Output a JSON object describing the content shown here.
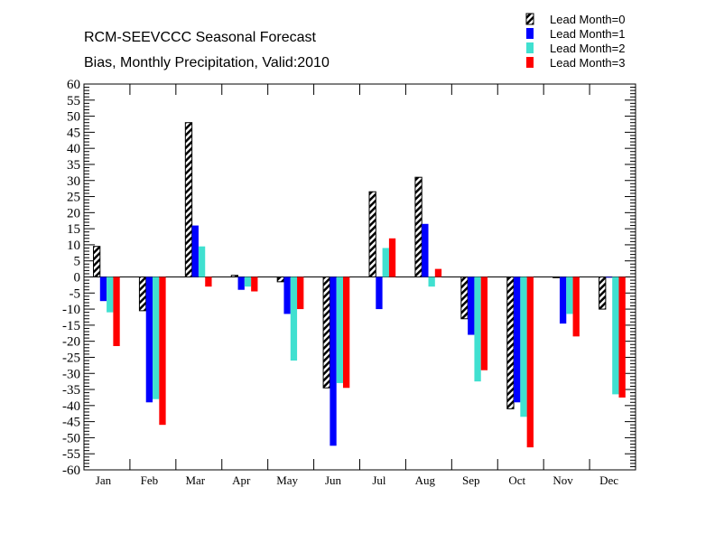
{
  "chart_data": {
    "type": "bar",
    "title": "RCM-SEEVCCC Seasonal Forecast",
    "subtitle": "Bias, Monthly Precipitation, Valid:2010",
    "xlabel": "",
    "ylabel": "",
    "ylim": [
      -60,
      60
    ],
    "y_major_step": 5,
    "y_minor_step": 1,
    "grid": false,
    "legend_position": "top-right",
    "categories": [
      "Jan",
      "Feb",
      "Mar",
      "Apr",
      "May",
      "Jun",
      "Jul",
      "Aug",
      "Sep",
      "Oct",
      "Nov",
      "Dec"
    ],
    "series": [
      {
        "name": "Lead Month=0",
        "color": "#000000",
        "pattern": "hatched",
        "values": [
          9.5,
          -10.5,
          48,
          0.5,
          -1.5,
          -34.5,
          26.5,
          31,
          -13,
          -41,
          0,
          -10
        ]
      },
      {
        "name": "Lead Month=1",
        "color": "#0000ff",
        "pattern": "solid",
        "values": [
          -7.5,
          -39,
          16,
          -4,
          -11.5,
          -52.5,
          -10,
          16.5,
          -18,
          -39,
          -14.5,
          0
        ]
      },
      {
        "name": "Lead Month=2",
        "color": "#40e0d0",
        "pattern": "solid",
        "values": [
          -11,
          -38,
          9.5,
          -3,
          -26,
          -33,
          9,
          -3,
          -32.5,
          -43.5,
          -11.5,
          -36.5
        ]
      },
      {
        "name": "Lead Month=3",
        "color": "#ff0000",
        "pattern": "solid",
        "values": [
          -21.5,
          -46,
          -3,
          -4.5,
          -10,
          -34.5,
          12,
          2.5,
          -29,
          -53,
          -18.5,
          -37.5
        ]
      }
    ]
  }
}
